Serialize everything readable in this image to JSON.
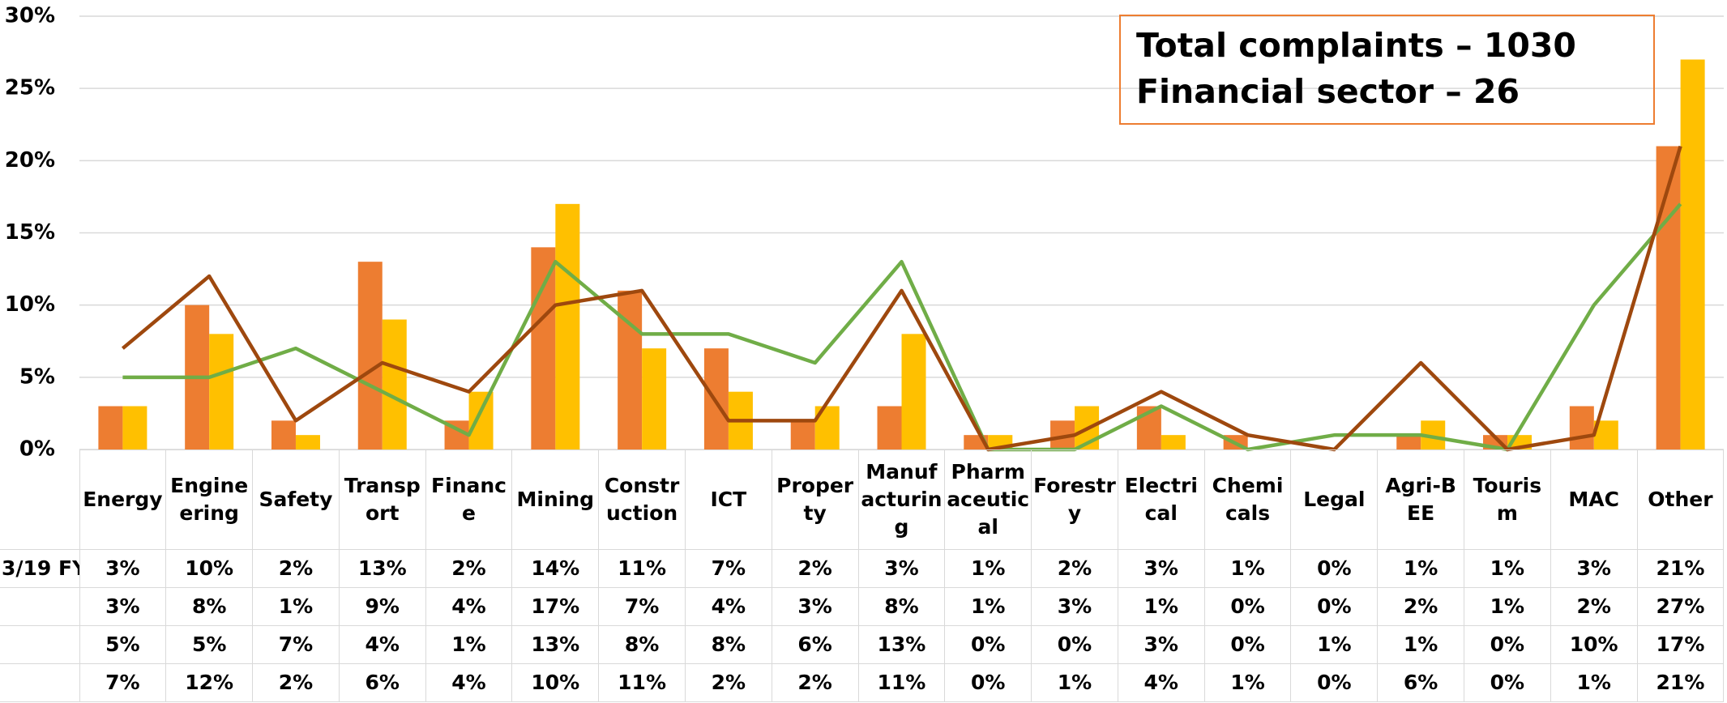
{
  "chart_data": {
    "type": "bar-line",
    "annotations": [
      "Total complaints – 1030",
      "Financial sector – 26"
    ],
    "categories": [
      "Energy",
      "Engineering",
      "Safety",
      "Transport",
      "Finance",
      "Mining",
      "Construction",
      "ICT",
      "Property",
      "Manufacturing",
      "Pharmaceutical",
      "Forestry",
      "Electrical",
      "Chemicals",
      "Legal",
      "Agri-BEE",
      "Tourism",
      "MAC",
      "Other"
    ],
    "series": [
      {
        "name": "3/19 FY",
        "type": "bar",
        "color": "#ed7d31",
        "values": [
          3,
          10,
          2,
          13,
          2,
          14,
          11,
          7,
          2,
          3,
          1,
          2,
          3,
          1,
          0,
          1,
          1,
          3,
          21
        ],
        "value_labels": [
          "3%",
          "10%",
          "2%",
          "13%",
          "2%",
          "14%",
          "11%",
          "7%",
          "2%",
          "3%",
          "1%",
          "2%",
          "3%",
          "1%",
          "0%",
          "1%",
          "1%",
          "3%",
          "21%"
        ]
      },
      {
        "type": "bar",
        "color": "#ffc000",
        "values": [
          3,
          8,
          1,
          9,
          4,
          17,
          7,
          4,
          3,
          8,
          1,
          3,
          1,
          0,
          0,
          2,
          1,
          2,
          27
        ],
        "value_labels": [
          "3%",
          "8%",
          "1%",
          "9%",
          "4%",
          "17%",
          "7%",
          "4%",
          "3%",
          "8%",
          "1%",
          "3%",
          "1%",
          "0%",
          "0%",
          "2%",
          "1%",
          "2%",
          "27%"
        ]
      },
      {
        "type": "line",
        "color": "#70ad47",
        "values": [
          5,
          5,
          7,
          4,
          1,
          13,
          8,
          8,
          6,
          13,
          0,
          0,
          3,
          0,
          1,
          1,
          0,
          10,
          17
        ],
        "value_labels": [
          "5%",
          "5%",
          "7%",
          "4%",
          "1%",
          "13%",
          "8%",
          "8%",
          "6%",
          "13%",
          "0%",
          "0%",
          "3%",
          "0%",
          "1%",
          "1%",
          "0%",
          "10%",
          "17%"
        ]
      },
      {
        "type": "line",
        "color": "#9e480e",
        "values": [
          7,
          12,
          2,
          6,
          4,
          10,
          11,
          2,
          2,
          11,
          0,
          1,
          4,
          1,
          0,
          6,
          0,
          1,
          21
        ],
        "value_labels": [
          "7%",
          "12%",
          "2%",
          "6%",
          "4%",
          "10%",
          "11%",
          "2%",
          "2%",
          "11%",
          "0%",
          "1%",
          "4%",
          "1%",
          "0%",
          "6%",
          "0%",
          "1%",
          "21%"
        ]
      }
    ],
    "ylim": [
      0,
      30
    ],
    "yticks": [
      {
        "value": 0,
        "label": "0%"
      },
      {
        "value": 5,
        "label": "5%"
      },
      {
        "value": 10,
        "label": "10%"
      },
      {
        "value": 15,
        "label": "15%"
      },
      {
        "value": 20,
        "label": "20%"
      },
      {
        "value": 25,
        "label": "25%"
      },
      {
        "value": 30,
        "label": "30%"
      }
    ],
    "grid": true
  }
}
